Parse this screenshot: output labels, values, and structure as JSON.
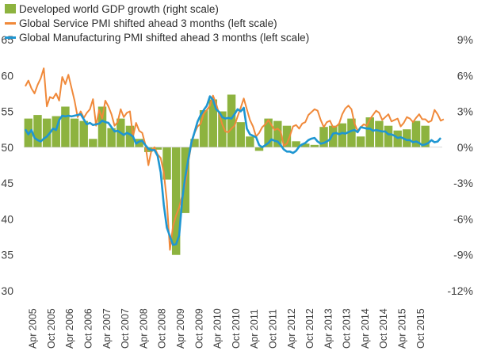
{
  "colors": {
    "gdp": "#8db33f",
    "service": "#f0893a",
    "manufacturing": "#1e96d2",
    "axis_text": "#404040",
    "grid": "#d9d9d9"
  },
  "legend": [
    {
      "key": "gdp",
      "label": "Developed world GDP growth (right scale)"
    },
    {
      "key": "service",
      "label": "Global Service PMI shifted ahead 3 months (left scale)"
    },
    {
      "key": "manufacturing",
      "label": "Global Manufacturing PMI shifted ahead 3 months (left scale)"
    }
  ],
  "chart_data": {
    "type": "line",
    "title": "",
    "xlabel": "",
    "ylabel": "",
    "y_left": {
      "range": [
        30,
        65
      ],
      "ticks": [
        30,
        35,
        40,
        45,
        50,
        55,
        60,
        65
      ]
    },
    "y_right": {
      "range": [
        -12,
        9
      ],
      "ticks": [
        -12,
        -9,
        -6,
        -3,
        0,
        3,
        6,
        9
      ],
      "tick_labels": [
        "-12%",
        "-9%",
        "-6%",
        "-3%",
        "0%",
        "3%",
        "6%",
        "9%"
      ]
    },
    "x_range": [
      "Jan 2005",
      "Apr 2016"
    ],
    "x_tick_labels": [
      "Apr 2005",
      "Oct 2005",
      "Apr 2006",
      "Oct 2006",
      "Apr 2007",
      "Oct 2007",
      "Apr 2008",
      "Oct 2008",
      "Apr 2009",
      "Oct 2009",
      "Apr 2010",
      "Oct 2010",
      "Apr 2011",
      "Oct 2011",
      "Apr 2012",
      "Oct 2012",
      "Apr 2013",
      "Oct 2013",
      "Apr 2014",
      "Oct 2014",
      "Apr 2015",
      "Oct 2015"
    ],
    "grid": false,
    "legend_position": "top-left",
    "series": [
      {
        "key": "gdp",
        "name": "Developed world GDP growth (right scale)",
        "type": "bar",
        "axis": "right",
        "x": [
          "2005 Q1",
          "2005 Q2",
          "2005 Q3",
          "2005 Q4",
          "2006 Q1",
          "2006 Q2",
          "2006 Q3",
          "2006 Q4",
          "2007 Q1",
          "2007 Q2",
          "2007 Q3",
          "2007 Q4",
          "2008 Q1",
          "2008 Q2",
          "2008 Q3",
          "2008 Q4",
          "2009 Q1",
          "2009 Q2",
          "2009 Q3",
          "2009 Q4",
          "2010 Q1",
          "2010 Q2",
          "2010 Q3",
          "2010 Q4",
          "2011 Q1",
          "2011 Q2",
          "2011 Q3",
          "2011 Q4",
          "2012 Q1",
          "2012 Q2",
          "2012 Q3",
          "2012 Q4",
          "2013 Q1",
          "2013 Q2",
          "2013 Q3",
          "2013 Q4",
          "2014 Q1",
          "2014 Q2",
          "2014 Q3",
          "2014 Q4",
          "2015 Q1",
          "2015 Q2",
          "2015 Q3",
          "2015 Q4"
        ],
        "values": [
          2.4,
          2.7,
          2.4,
          2.6,
          3.4,
          2.4,
          2.2,
          0.7,
          3.4,
          1.6,
          2.4,
          1.8,
          0.7,
          -0.4,
          -0.2,
          -2.7,
          -9.0,
          -5.5,
          0.7,
          3.1,
          4.0,
          3.0,
          4.4,
          2.1,
          0.9,
          -0.3,
          2.4,
          2.2,
          1.8,
          0.5,
          0.3,
          0.2,
          1.7,
          1.8,
          2.0,
          2.4,
          0.9,
          2.5,
          2.2,
          1.8,
          1.4,
          1.5,
          2.2,
          1.8
        ]
      },
      {
        "key": "service",
        "name": "Global Service PMI shifted ahead 3 months (left scale)",
        "type": "line",
        "axis": "left",
        "x_start": "Jan 2005",
        "frequency": "monthly",
        "values": [
          58.5,
          59.3,
          58.2,
          57.5,
          58.7,
          59.6,
          61.0,
          55.7,
          57.0,
          56.8,
          57.5,
          56.5,
          59.8,
          58.8,
          60.1,
          58.3,
          56.5,
          54.2,
          55.0,
          54.1,
          54.8,
          55.3,
          56.7,
          53.0,
          55.2,
          54.0,
          56.5,
          55.7,
          54.6,
          53.0,
          53.5,
          55.3,
          54.2,
          54.8,
          55.0,
          51.5,
          53.4,
          52.3,
          52.0,
          50.4,
          47.5,
          49.6,
          50.0,
          49.0,
          48.5,
          46.5,
          42.5,
          35.7,
          39.0,
          40.5,
          41.6,
          43.3,
          44.7,
          48.0,
          50.5,
          52.0,
          52.9,
          53.3,
          54.7,
          55.2,
          55.8,
          57.2,
          56.1,
          54.6,
          53.2,
          52.2,
          52.1,
          52.6,
          53.0,
          54.3,
          55.5,
          56.8,
          55.3,
          53.8,
          52.9,
          51.5,
          52.0,
          52.8,
          53.2,
          53.8,
          53.1,
          52.4,
          52.6,
          52.2,
          50.2,
          50.5,
          51.6,
          52.9,
          53.1,
          52.6,
          53.3,
          53.5,
          54.5,
          54.9,
          55.3,
          55.1,
          53.8,
          52.8,
          53.5,
          53.7,
          52.8,
          52.9,
          53.3,
          54.6,
          55.4,
          55.8,
          55.3,
          53.3,
          52.3,
          52.8,
          53.2,
          53.0,
          53.9,
          54.5,
          55.1,
          54.8,
          53.8,
          54.2,
          54.6,
          53.6,
          53.8,
          54.0,
          52.9,
          53.4,
          54.2,
          54.0,
          53.5,
          54.1,
          54.6,
          53.9,
          53.9,
          53.5,
          53.7,
          55.2,
          54.6,
          53.7,
          53.9
        ]
      },
      {
        "key": "manufacturing",
        "name": "Global Manufacturing PMI shifted ahead 3 months (left scale)",
        "type": "line",
        "axis": "left",
        "x_start": "Jan 2005",
        "frequency": "monthly",
        "values": [
          52.5,
          51.8,
          52.4,
          51.3,
          51.0,
          50.8,
          51.2,
          51.5,
          52.0,
          52.6,
          52.4,
          53.8,
          54.4,
          54.3,
          54.4,
          54.3,
          54.4,
          54.5,
          54.6,
          53.9,
          53.2,
          53.4,
          53.1,
          53.2,
          53.3,
          53.7,
          53.5,
          53.4,
          52.8,
          52.2,
          52.3,
          52.0,
          51.7,
          52.0,
          51.8,
          51.5,
          50.5,
          50.8,
          50.9,
          50.3,
          49.8,
          49.6,
          49.6,
          48.8,
          46.5,
          42.0,
          38.8,
          37.6,
          36.4,
          36.5,
          37.7,
          42.8,
          45.9,
          48.4,
          50.7,
          52.1,
          53.6,
          54.5,
          55.2,
          55.8,
          57.1,
          56.6,
          55.3,
          54.9,
          54.2,
          54.0,
          54.1,
          54.0,
          54.6,
          55.3,
          55.0,
          55.5,
          52.6,
          51.8,
          51.6,
          51.4,
          50.3,
          50.0,
          50.3,
          50.6,
          51.1,
          50.9,
          50.8,
          50.3,
          49.7,
          49.4,
          49.4,
          49.2,
          49.5,
          50.1,
          50.4,
          50.6,
          51.0,
          51.2,
          51.3,
          50.8,
          50.5,
          50.6,
          50.8,
          51.1,
          51.9,
          52.0,
          51.8,
          52.0,
          51.9,
          52.1,
          52.3,
          52.4,
          52.1,
          52.8,
          52.7,
          52.6,
          52.6,
          52.3,
          52.4,
          52.3,
          52.2,
          52.2,
          51.8,
          51.8,
          51.6,
          51.3,
          51.4,
          51.2,
          51.0,
          51.0,
          50.7,
          50.8,
          50.6,
          50.3,
          50.4,
          50.6,
          51.0,
          50.7,
          50.8,
          51.3
        ]
      }
    ]
  }
}
